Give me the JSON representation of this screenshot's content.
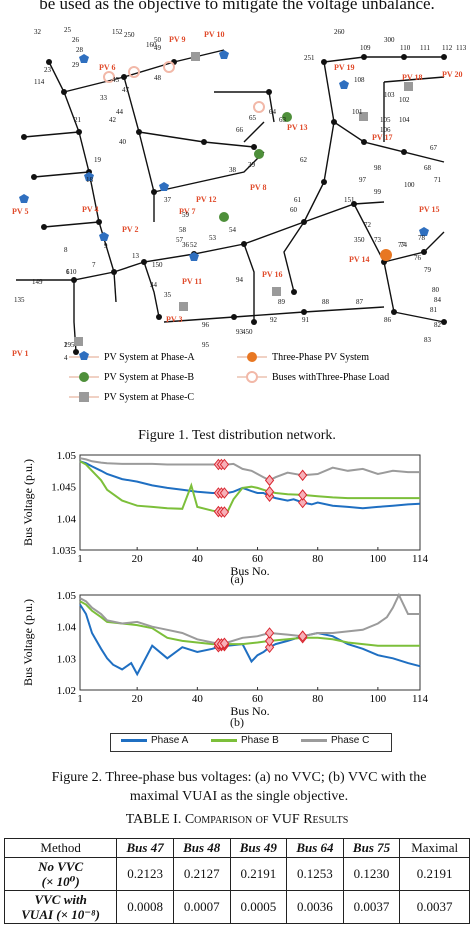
{
  "top_text": "be used as the objective to mitigate the voltage unbalance.",
  "figure1": {
    "caption": "Figure 1.    Test distribution network.",
    "legend": [
      {
        "label": "PV System at Phase-A",
        "color": "#2f6fbf",
        "shape": "pentagon"
      },
      {
        "label": "Three-Phase PV System",
        "color": "#e87722",
        "shape": "circle"
      },
      {
        "label": "PV System at Phase-B",
        "color": "#4e8f3a",
        "shape": "circle"
      },
      {
        "label": "Buses withThree-Phase Load",
        "color": "#f2b8a8",
        "shape": "ring"
      },
      {
        "label": "PV System at Phase-C",
        "color": "#9a9a9a",
        "shape": "square"
      }
    ],
    "pv_labels": [
      "PV 1",
      "PV 2",
      "PV 3",
      "PV 4",
      "PV 5",
      "PV 6",
      "PV 7",
      "PV 8",
      "PV 9",
      "PV 10",
      "PV 11",
      "PV 12",
      "PV 13",
      "PV 14",
      "PV 15",
      "PV 16",
      "PV 17",
      "PV 18",
      "PV 19",
      "PV 20"
    ],
    "bus_labels": [
      "1",
      "2",
      "3",
      "4",
      "7",
      "8",
      "9",
      "13",
      "18",
      "19",
      "21",
      "23",
      "25",
      "26",
      "28",
      "29",
      "32",
      "33",
      "34",
      "35",
      "36",
      "37",
      "38",
      "39",
      "40",
      "42",
      "44",
      "45",
      "47",
      "48",
      "49",
      "50",
      "52",
      "53",
      "54",
      "57",
      "58",
      "59",
      "60",
      "61",
      "62",
      "63",
      "64",
      "65",
      "66",
      "67",
      "68",
      "71",
      "72",
      "73",
      "74",
      "76",
      "77",
      "78",
      "79",
      "80",
      "81",
      "82",
      "83",
      "84",
      "86",
      "87",
      "88",
      "89",
      "91",
      "92",
      "93",
      "94",
      "95",
      "96",
      "97",
      "98",
      "99",
      "100",
      "101",
      "102",
      "103",
      "104",
      "105",
      "106",
      "108",
      "109",
      "110",
      "111",
      "112",
      "113",
      "114",
      "135",
      "149",
      "150",
      "151",
      "152",
      "160",
      "250",
      "251",
      "260",
      "300",
      "350",
      "450",
      "610",
      "195"
    ]
  },
  "chart_a": {
    "type": "line",
    "xlabel": "Bus No.",
    "ylabel": "Bus Voltage (p.u.)",
    "ylim": [
      1.035,
      1.05
    ],
    "yticks": [
      "1.05",
      "1.045",
      "1.04",
      "1.035"
    ],
    "xticks": [
      "1",
      "20",
      "40",
      "60",
      "80",
      "100",
      "114"
    ],
    "sublabel": "(a)"
  },
  "chart_b": {
    "type": "line",
    "xlabel": "Bus No.",
    "ylabel": "Bus Voltage (p.u.)",
    "ylim": [
      1.02,
      1.05
    ],
    "yticks": [
      "1.05",
      "1.04",
      "1.03",
      "1.02"
    ],
    "xticks": [
      "1",
      "20",
      "40",
      "60",
      "80",
      "100",
      "114"
    ],
    "sublabel": "(b)"
  },
  "legend2": [
    {
      "name": "Phase A",
      "color": "#1f6fc2"
    },
    {
      "name": "Phase B",
      "color": "#7cbf3a"
    },
    {
      "name": "Phase C",
      "color": "#9b9b9b"
    }
  ],
  "figure2": {
    "caption_line1": "Figure 2.    Three-phase bus voltages: (a) no VVC; (b) VVC with the",
    "caption_line2": "maximal VUAI as the single objective."
  },
  "table": {
    "title": "TABLE I.          Comparison of VUF Results",
    "headers": [
      "Method",
      "Bus 47",
      "Bus 48",
      "Bus 49",
      "Bus 64",
      "Bus 75",
      "Maximal"
    ],
    "rows": [
      {
        "method_l1": "No VVC",
        "method_l2": "(× 10⁰)",
        "values": [
          "0.2123",
          "0.2127",
          "0.2191",
          "0.1253",
          "0.1230",
          "0.2191"
        ]
      },
      {
        "method_l1": "VVC with",
        "method_l2": "VUAI (× 10⁻⁸)",
        "values": [
          "0.0008",
          "0.0007",
          "0.0005",
          "0.0036",
          "0.0037",
          "0.0037"
        ]
      }
    ]
  },
  "chart_data": [
    {
      "type": "line",
      "title": "",
      "xlabel": "Bus No.",
      "ylabel": "Bus Voltage (p.u.)",
      "xlim": [
        1,
        114
      ],
      "ylim": [
        1.035,
        1.05
      ],
      "series": [
        {
          "name": "Phase A",
          "color": "#1f6fc2",
          "x": [
            1,
            3,
            5,
            8,
            10,
            15,
            20,
            25,
            30,
            35,
            40,
            45,
            48,
            50,
            52,
            55,
            58,
            60,
            62,
            64,
            66,
            70,
            72,
            75,
            78,
            80,
            85,
            90,
            95,
            100,
            105,
            110,
            114
          ],
          "y": [
            1.049,
            1.0487,
            1.0482,
            1.0475,
            1.047,
            1.0462,
            1.0458,
            1.0452,
            1.0448,
            1.0445,
            1.0442,
            1.044,
            1.044,
            1.044,
            1.0442,
            1.0448,
            1.0443,
            1.044,
            1.044,
            1.0435,
            1.0432,
            1.0428,
            1.043,
            1.0425,
            1.0422,
            1.0425,
            1.042,
            1.0418,
            1.0416,
            1.0418,
            1.042,
            1.0422,
            1.0423
          ]
        },
        {
          "name": "Phase B",
          "color": "#7cbf3a",
          "x": [
            1,
            3,
            5,
            8,
            10,
            15,
            20,
            25,
            30,
            35,
            38,
            40,
            45,
            48,
            50,
            52,
            55,
            58,
            60,
            62,
            64,
            66,
            70,
            75,
            80,
            85,
            90,
            95,
            100,
            105,
            110,
            114
          ],
          "y": [
            1.049,
            1.0485,
            1.0475,
            1.046,
            1.0445,
            1.0428,
            1.042,
            1.0418,
            1.0416,
            1.0415,
            1.0452,
            1.0418,
            1.0412,
            1.041,
            1.041,
            1.043,
            1.0448,
            1.045,
            1.0448,
            1.0445,
            1.0442,
            1.044,
            1.0438,
            1.0437,
            1.0435,
            1.0433,
            1.0432,
            1.0432,
            1.0432,
            1.0432,
            1.0432,
            1.0432
          ]
        },
        {
          "name": "Phase C",
          "color": "#9b9b9b",
          "x": [
            1,
            3,
            5,
            8,
            10,
            15,
            20,
            25,
            30,
            35,
            40,
            45,
            48,
            50,
            52,
            55,
            58,
            60,
            62,
            64,
            66,
            70,
            75,
            80,
            85,
            90,
            95,
            100,
            105,
            110,
            114
          ],
          "y": [
            1.0495,
            1.0493,
            1.049,
            1.0488,
            1.0487,
            1.0486,
            1.0486,
            1.0486,
            1.0485,
            1.0485,
            1.0485,
            1.0485,
            1.0485,
            1.0485,
            1.0486,
            1.0478,
            1.0475,
            1.047,
            1.0465,
            1.046,
            1.0465,
            1.0472,
            1.0468,
            1.047,
            1.048,
            1.0475,
            1.0478,
            1.047,
            1.0475,
            1.0473,
            1.0473
          ]
        }
      ]
    },
    {
      "type": "line",
      "title": "",
      "xlabel": "Bus No.",
      "ylabel": "Bus Voltage (p.u.)",
      "xlim": [
        1,
        114
      ],
      "ylim": [
        1.02,
        1.05
      ],
      "series": [
        {
          "name": "Phase A",
          "color": "#1f6fc2",
          "x": [
            1,
            3,
            5,
            8,
            10,
            12,
            15,
            18,
            20,
            25,
            30,
            35,
            40,
            45,
            48,
            50,
            55,
            58,
            60,
            62,
            64,
            66,
            70,
            75,
            80,
            85,
            90,
            95,
            100,
            105,
            110,
            114
          ],
          "y": [
            1.047,
            1.044,
            1.038,
            1.033,
            1.03,
            1.028,
            1.0265,
            1.0285,
            1.025,
            1.034,
            1.03,
            1.0335,
            1.032,
            1.033,
            1.034,
            1.034,
            1.0345,
            1.029,
            1.031,
            1.032,
            1.0335,
            1.0345,
            1.0355,
            1.037,
            1.038,
            1.037,
            1.0345,
            1.033,
            1.031,
            1.03,
            1.0285,
            1.0275
          ]
        },
        {
          "name": "Phase B",
          "color": "#7cbf3a",
          "x": [
            1,
            3,
            5,
            8,
            10,
            15,
            20,
            25,
            30,
            35,
            40,
            45,
            48,
            50,
            55,
            60,
            64,
            70,
            75,
            80,
            85,
            90,
            95,
            100,
            105,
            110,
            114
          ],
          "y": [
            1.048,
            1.047,
            1.045,
            1.043,
            1.0415,
            1.041,
            1.0405,
            1.0395,
            1.0365,
            1.0355,
            1.035,
            1.0345,
            1.0345,
            1.0345,
            1.0345,
            1.035,
            1.0355,
            1.036,
            1.0365,
            1.0365,
            1.036,
            1.035,
            1.0345,
            1.034,
            1.034,
            1.034,
            1.034
          ]
        },
        {
          "name": "Phase C",
          "color": "#9b9b9b",
          "x": [
            1,
            3,
            5,
            8,
            10,
            15,
            20,
            25,
            30,
            35,
            40,
            45,
            48,
            50,
            55,
            60,
            64,
            70,
            75,
            80,
            85,
            90,
            95,
            100,
            103,
            105,
            107,
            110,
            114
          ],
          "y": [
            1.049,
            1.048,
            1.046,
            1.044,
            1.042,
            1.041,
            1.0415,
            1.04,
            1.039,
            1.038,
            1.036,
            1.035,
            1.0345,
            1.035,
            1.0365,
            1.037,
            1.038,
            1.0375,
            1.037,
            1.038,
            1.038,
            1.0385,
            1.039,
            1.041,
            1.043,
            1.046,
            1.05,
            1.044,
            1.044
          ]
        }
      ],
      "markers_buses": [
        47,
        48,
        49,
        64,
        75
      ]
    }
  ]
}
